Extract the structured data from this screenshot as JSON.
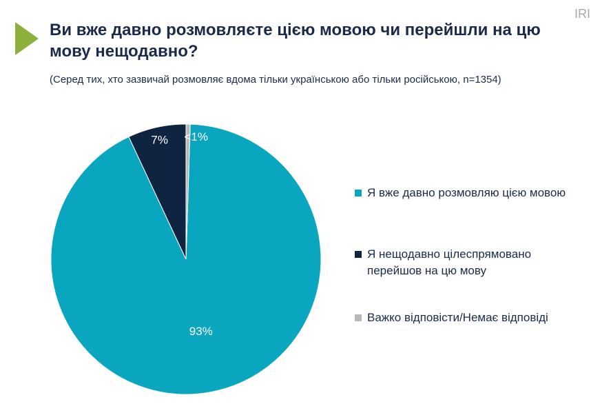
{
  "brand": "IRI",
  "chart_data": {
    "type": "pie",
    "title": "Ви вже давно розмовляєте цією мовою чи перейшли на цю мову нещодавно?",
    "subtitle": "(Серед тих, хто зазвичай розмовляє вдома тільки українською або тільки російською, n=1354)",
    "categories": [
      "Я вже давно розмовляю цією мовою",
      "Я нещодавно цілеспрямовано перейшов на цю мову",
      "Важко відповісти/Немає відповіді"
    ],
    "values": [
      93,
      7,
      0.5
    ],
    "value_labels": [
      "93%",
      "7%",
      "<1%"
    ],
    "colors": [
      "#0aa6bf",
      "#0f2441",
      "#b8b8b8"
    ]
  }
}
